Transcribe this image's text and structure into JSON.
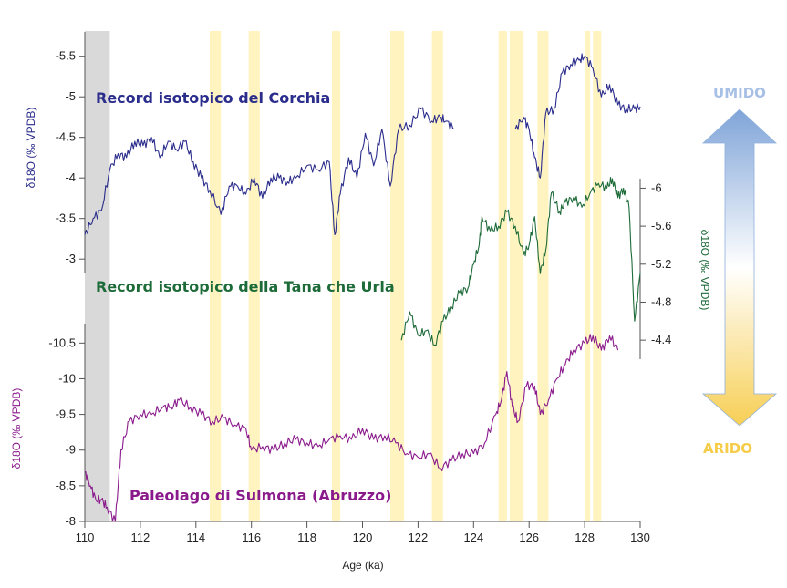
{
  "chart_data": {
    "type": "line",
    "xlabel": "Age (ka)",
    "x_ticks": [
      110,
      112,
      114,
      116,
      118,
      120,
      122,
      124,
      126,
      128,
      130
    ],
    "xlim": [
      110,
      130
    ],
    "shaded_intervals": {
      "grey": [
        [
          110.0,
          110.9
        ]
      ],
      "yellow": [
        [
          114.5,
          114.9
        ],
        [
          115.9,
          116.3
        ],
        [
          118.9,
          119.2
        ],
        [
          121.0,
          121.5
        ],
        [
          122.5,
          122.9
        ],
        [
          124.9,
          125.2
        ],
        [
          125.3,
          125.8
        ],
        [
          126.3,
          126.7
        ],
        [
          128.0,
          128.2
        ],
        [
          128.3,
          128.6
        ]
      ]
    },
    "series": [
      {
        "name": "Corchia",
        "label": "Record isotopico del Corchia",
        "color": "#2b2d8c",
        "ylabel": "δ18O (‰ VPDB)",
        "axis_side": "left",
        "y_ticks": [
          -3,
          -3.5,
          -4,
          -4.5,
          -5,
          -5.5
        ],
        "y_tick_labels": [
          "-3",
          "-3.5",
          "-4",
          "-4.5",
          "-5",
          "-5.5"
        ],
        "ylim": [
          -2.8,
          -5.8
        ],
        "segments": [
          [
            [
              110.0,
              -3.3
            ],
            [
              110.3,
              -3.5
            ],
            [
              110.6,
              -3.6
            ],
            [
              110.9,
              -4.1
            ],
            [
              111.2,
              -4.3
            ],
            [
              111.5,
              -4.25
            ],
            [
              111.8,
              -4.45
            ],
            [
              112.1,
              -4.4
            ],
            [
              112.4,
              -4.5
            ],
            [
              112.7,
              -4.25
            ],
            [
              113.0,
              -4.45
            ],
            [
              113.3,
              -4.35
            ],
            [
              113.6,
              -4.45
            ],
            [
              113.9,
              -4.2
            ],
            [
              114.2,
              -4.0
            ],
            [
              114.5,
              -3.85
            ],
            [
              114.9,
              -3.55
            ],
            [
              115.2,
              -3.9
            ],
            [
              115.5,
              -3.9
            ],
            [
              115.8,
              -3.8
            ],
            [
              116.1,
              -4.0
            ],
            [
              116.4,
              -3.75
            ],
            [
              116.7,
              -4.0
            ],
            [
              117.0,
              -4.0
            ],
            [
              117.3,
              -3.95
            ],
            [
              117.6,
              -4.0
            ],
            [
              118.0,
              -4.15
            ],
            [
              118.4,
              -4.1
            ],
            [
              118.8,
              -4.2
            ],
            [
              119.0,
              -3.3
            ],
            [
              119.2,
              -3.8
            ],
            [
              119.5,
              -4.25
            ],
            [
              119.8,
              -4.0
            ],
            [
              120.1,
              -4.55
            ],
            [
              120.4,
              -4.15
            ],
            [
              120.7,
              -4.6
            ],
            [
              121.0,
              -3.9
            ],
            [
              121.3,
              -4.6
            ],
            [
              121.7,
              -4.65
            ],
            [
              122.1,
              -4.85
            ],
            [
              122.5,
              -4.7
            ],
            [
              122.8,
              -4.75
            ],
            [
              123.0,
              -4.7
            ],
            [
              123.3,
              -4.6
            ]
          ],
          [
            [
              125.5,
              -4.6
            ],
            [
              125.8,
              -4.75
            ],
            [
              126.0,
              -4.6
            ],
            [
              126.2,
              -4.25
            ],
            [
              126.4,
              -4.0
            ],
            [
              126.6,
              -4.8
            ],
            [
              126.9,
              -4.85
            ],
            [
              127.2,
              -5.3
            ],
            [
              127.5,
              -5.4
            ],
            [
              127.8,
              -5.45
            ],
            [
              128.0,
              -5.5
            ],
            [
              128.3,
              -5.35
            ],
            [
              128.6,
              -5.0
            ],
            [
              128.9,
              -5.15
            ],
            [
              129.2,
              -4.9
            ],
            [
              129.5,
              -4.85
            ],
            [
              129.8,
              -4.85
            ],
            [
              130.0,
              -4.88
            ]
          ]
        ]
      },
      {
        "name": "Tana che Urla",
        "label": "Record isotopico della Tana che Urla",
        "color": "#1e6b3a",
        "ylabel": "δ18O (‰ VPDB)",
        "axis_side": "right",
        "y_ticks": [
          -4.4,
          -4.8,
          -5.2,
          -5.6,
          -6
        ],
        "y_tick_labels": [
          "-4.4",
          "-4.8",
          "-5.2",
          "-5.6",
          "-6"
        ],
        "ylim": [
          -4.2,
          -6.1
        ],
        "segments": [
          [
            [
              121.4,
              -4.4
            ],
            [
              121.7,
              -4.7
            ],
            [
              122.0,
              -4.45
            ],
            [
              122.3,
              -4.5
            ],
            [
              122.6,
              -4.35
            ],
            [
              122.9,
              -4.6
            ],
            [
              123.2,
              -4.75
            ],
            [
              123.5,
              -4.9
            ],
            [
              123.8,
              -4.95
            ],
            [
              124.0,
              -5.2
            ],
            [
              124.2,
              -5.4
            ],
            [
              124.3,
              -5.7
            ],
            [
              124.6,
              -5.55
            ],
            [
              124.9,
              -5.6
            ],
            [
              125.2,
              -5.75
            ],
            [
              125.5,
              -5.6
            ],
            [
              125.8,
              -5.3
            ],
            [
              126.0,
              -5.4
            ],
            [
              126.2,
              -5.7
            ],
            [
              126.4,
              -5.1
            ],
            [
              126.6,
              -5.35
            ],
            [
              126.8,
              -5.95
            ],
            [
              127.1,
              -5.75
            ],
            [
              127.3,
              -5.85
            ],
            [
              127.6,
              -5.9
            ],
            [
              127.9,
              -5.8
            ],
            [
              128.2,
              -5.95
            ],
            [
              128.5,
              -6.05
            ],
            [
              128.8,
              -6.0
            ],
            [
              129.0,
              -6.1
            ],
            [
              129.2,
              -5.9
            ],
            [
              129.4,
              -6.0
            ],
            [
              129.6,
              -5.8
            ],
            [
              129.8,
              -4.6
            ],
            [
              130.0,
              -5.1
            ]
          ]
        ]
      },
      {
        "name": "Sulmona",
        "label": "Paleolago di Sulmona (Abruzzo)",
        "color": "#8a1a8c",
        "ylabel": "δ18O (‰ VPDB)",
        "axis_side": "left",
        "y_ticks": [
          -8,
          -8.5,
          -9,
          -9.5,
          -10,
          -10.5
        ],
        "y_tick_labels": [
          "-8",
          "-8.5",
          "-9",
          "-9.5",
          "-10",
          "-10.5"
        ],
        "ylim": [
          -8.0,
          -10.9
        ],
        "segments": [
          [
            [
              110.0,
              -8.7
            ],
            [
              110.2,
              -8.5
            ],
            [
              110.4,
              -8.3
            ],
            [
              110.6,
              -8.3
            ],
            [
              110.8,
              -8.2
            ],
            [
              111.1,
              -8.0
            ],
            [
              111.3,
              -9.0
            ],
            [
              111.6,
              -9.4
            ],
            [
              112.0,
              -9.5
            ],
            [
              112.4,
              -9.5
            ],
            [
              112.8,
              -9.6
            ],
            [
              113.1,
              -9.6
            ],
            [
              113.4,
              -9.7
            ],
            [
              113.8,
              -9.6
            ],
            [
              114.2,
              -9.5
            ],
            [
              114.6,
              -9.4
            ],
            [
              115.0,
              -9.45
            ],
            [
              115.4,
              -9.35
            ],
            [
              115.8,
              -9.3
            ],
            [
              116.0,
              -9.0
            ],
            [
              116.4,
              -9.05
            ],
            [
              116.8,
              -9.0
            ],
            [
              117.2,
              -9.1
            ],
            [
              117.6,
              -9.15
            ],
            [
              118.0,
              -9.1
            ],
            [
              118.4,
              -9.05
            ],
            [
              118.8,
              -9.15
            ],
            [
              119.2,
              -9.2
            ],
            [
              119.6,
              -9.15
            ],
            [
              120.0,
              -9.3
            ],
            [
              120.4,
              -9.15
            ],
            [
              120.8,
              -9.2
            ],
            [
              121.2,
              -9.1
            ],
            [
              121.6,
              -8.95
            ],
            [
              122.0,
              -8.9
            ],
            [
              122.4,
              -8.95
            ],
            [
              122.8,
              -8.75
            ],
            [
              123.2,
              -8.85
            ],
            [
              123.6,
              -8.95
            ],
            [
              124.0,
              -8.95
            ],
            [
              124.4,
              -9.1
            ],
            [
              124.8,
              -9.5
            ],
            [
              125.0,
              -9.7
            ],
            [
              125.2,
              -10.1
            ],
            [
              125.4,
              -9.6
            ],
            [
              125.6,
              -9.4
            ],
            [
              125.9,
              -9.9
            ],
            [
              126.2,
              -9.9
            ],
            [
              126.4,
              -9.5
            ],
            [
              126.7,
              -9.7
            ],
            [
              127.0,
              -10.0
            ],
            [
              127.3,
              -10.2
            ],
            [
              127.6,
              -10.4
            ],
            [
              128.0,
              -10.5
            ],
            [
              128.3,
              -10.6
            ],
            [
              128.6,
              -10.4
            ],
            [
              128.9,
              -10.6
            ],
            [
              129.2,
              -10.4
            ]
          ]
        ]
      }
    ],
    "climate_arrow": {
      "top_label": "UMIDO",
      "bottom_label": "ARIDO"
    }
  }
}
